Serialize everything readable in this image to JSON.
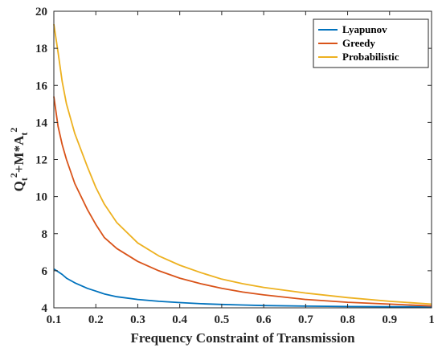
{
  "chart_data": {
    "type": "line",
    "title": "",
    "xlabel": "Frequency Constraint of Transmission",
    "ylabel": {
      "parts": [
        {
          "text": "Q",
          "sub": "t",
          "sup": "2"
        },
        {
          "text": "+M*A",
          "sub": "t",
          "sup": "2"
        }
      ]
    },
    "xlim": [
      0.1,
      1
    ],
    "ylim": [
      4,
      20
    ],
    "xticks": [
      0.1,
      0.2,
      0.3,
      0.4,
      0.5,
      0.6,
      0.7,
      0.8,
      0.9,
      1
    ],
    "xtick_labels": [
      "0.1",
      "0.2",
      "0.3",
      "0.4",
      "0.5",
      "0.6",
      "0.7",
      "0.8",
      "0.9",
      "1"
    ],
    "yticks": [
      4,
      6,
      8,
      10,
      12,
      14,
      16,
      18,
      20
    ],
    "ytick_labels": [
      "4",
      "6",
      "8",
      "10",
      "12",
      "14",
      "16",
      "18",
      "20"
    ],
    "grid": false,
    "legend_position": "top-right",
    "x": [
      0.1,
      0.11,
      0.12,
      0.13,
      0.15,
      0.18,
      0.2,
      0.22,
      0.25,
      0.3,
      0.35,
      0.4,
      0.45,
      0.5,
      0.55,
      0.6,
      0.7,
      0.8,
      0.9,
      1.0
    ],
    "series": [
      {
        "name": "Lyapunov",
        "color": "#0072BD",
        "values": [
          6.1,
          5.95,
          5.8,
          5.6,
          5.35,
          5.05,
          4.9,
          4.75,
          4.6,
          4.45,
          4.35,
          4.28,
          4.22,
          4.18,
          4.15,
          4.12,
          4.09,
          4.07,
          4.06,
          4.05
        ]
      },
      {
        "name": "Greedy",
        "color": "#D95319",
        "values": [
          15.4,
          13.8,
          12.8,
          12.0,
          10.7,
          9.3,
          8.5,
          7.8,
          7.2,
          6.5,
          6.0,
          5.6,
          5.3,
          5.05,
          4.85,
          4.7,
          4.45,
          4.3,
          4.2,
          4.1
        ]
      },
      {
        "name": "Probabilistic",
        "color": "#EDB120",
        "values": [
          19.3,
          17.8,
          16.2,
          15.0,
          13.4,
          11.6,
          10.5,
          9.6,
          8.6,
          7.5,
          6.8,
          6.3,
          5.9,
          5.55,
          5.3,
          5.1,
          4.8,
          4.55,
          4.35,
          4.2
        ]
      }
    ]
  }
}
